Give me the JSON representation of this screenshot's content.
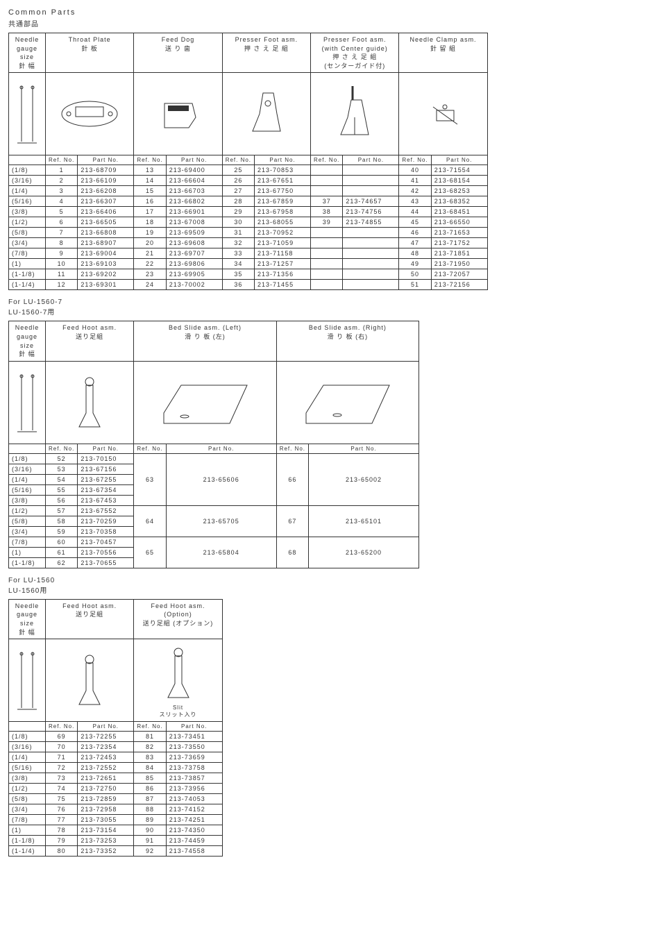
{
  "title": "Common Parts",
  "subtitle": "共通部品",
  "headers": {
    "gauge": "Needle gauge\nsize\n針 幅",
    "refno": "Ref. No.",
    "partno": "Part No.",
    "throat": "Throat Plate\n針 板",
    "feeddog": "Feed Dog\n送 り 歯",
    "presser": "Presser Foot asm.\n押 さ え 足 組",
    "presser_center": "Presser Foot asm.\n(with Center guide)\n押 さ え 足 組\n(センターガイド付)",
    "clamp": "Needle Clamp asm.\n針 留 組",
    "feedhoot": "Feed Hoot asm.\n送り足組",
    "feedhoot_opt": "Feed Hoot asm.\n(Option)\n送り足組 (オプション)",
    "bed_left": "Bed Slide asm. (Left)\n滑 り 板 (左)",
    "bed_right": "Bed Slide asm. (Right)\n滑 り 板 (右)",
    "slit": "Slit\nスリット入り"
  },
  "section2": {
    "title1": "For LU-1560-7",
    "title2": "LU-1560-7用"
  },
  "section3": {
    "title1": "For LU-1560",
    "title2": "LU-1560用"
  },
  "gauges": [
    "(1/8)",
    "(3/16)",
    "(1/4)",
    "(5/16)",
    "(3/8)",
    "(1/2)",
    "(5/8)",
    "(3/4)",
    "(7/8)",
    "(1)",
    "(1-1/8)",
    "(1-1/4)"
  ],
  "table1": [
    {
      "g": "(1/8)",
      "r1": "1",
      "p1": "213-68709",
      "r2": "13",
      "p2": "213-69400",
      "r3": "25",
      "p3": "213-70853",
      "r4": "",
      "p4": "",
      "r5": "40",
      "p5": "213-71554"
    },
    {
      "g": "(3/16)",
      "r1": "2",
      "p1": "213-66109",
      "r2": "14",
      "p2": "213-66604",
      "r3": "26",
      "p3": "213-67651",
      "r4": "",
      "p4": "",
      "r5": "41",
      "p5": "213-68154"
    },
    {
      "g": "(1/4)",
      "r1": "3",
      "p1": "213-66208",
      "r2": "15",
      "p2": "213-66703",
      "r3": "27",
      "p3": "213-67750",
      "r4": "",
      "p4": "",
      "r5": "42",
      "p5": "213-68253"
    },
    {
      "g": "(5/16)",
      "r1": "4",
      "p1": "213-66307",
      "r2": "16",
      "p2": "213-66802",
      "r3": "28",
      "p3": "213-67859",
      "r4": "37",
      "p4": "213-74657",
      "r5": "43",
      "p5": "213-68352"
    },
    {
      "g": "(3/8)",
      "r1": "5",
      "p1": "213-66406",
      "r2": "17",
      "p2": "213-66901",
      "r3": "29",
      "p3": "213-67958",
      "r4": "38",
      "p4": "213-74756",
      "r5": "44",
      "p5": "213-68451"
    },
    {
      "g": "(1/2)",
      "r1": "6",
      "p1": "213-66505",
      "r2": "18",
      "p2": "213-67008",
      "r3": "30",
      "p3": "213-68055",
      "r4": "39",
      "p4": "213-74855",
      "r5": "45",
      "p5": "213-66550"
    },
    {
      "g": "(5/8)",
      "r1": "7",
      "p1": "213-66808",
      "r2": "19",
      "p2": "213-69509",
      "r3": "31",
      "p3": "213-70952",
      "r4": "",
      "p4": "",
      "r5": "46",
      "p5": "213-71653"
    },
    {
      "g": "(3/4)",
      "r1": "8",
      "p1": "213-68907",
      "r2": "20",
      "p2": "213-69608",
      "r3": "32",
      "p3": "213-71059",
      "r4": "",
      "p4": "",
      "r5": "47",
      "p5": "213-71752"
    },
    {
      "g": "(7/8)",
      "r1": "9",
      "p1": "213-69004",
      "r2": "21",
      "p2": "213-69707",
      "r3": "33",
      "p3": "213-71158",
      "r4": "",
      "p4": "",
      "r5": "48",
      "p5": "213-71851"
    },
    {
      "g": "(1)",
      "r1": "10",
      "p1": "213-69103",
      "r2": "22",
      "p2": "213-69806",
      "r3": "34",
      "p3": "213-71257",
      "r4": "",
      "p4": "",
      "r5": "49",
      "p5": "213-71950"
    },
    {
      "g": "(1-1/8)",
      "r1": "11",
      "p1": "213-69202",
      "r2": "23",
      "p2": "213-69905",
      "r3": "35",
      "p3": "213-71356",
      "r4": "",
      "p4": "",
      "r5": "50",
      "p5": "213-72057"
    },
    {
      "g": "(1-1/4)",
      "r1": "12",
      "p1": "213-69301",
      "r2": "24",
      "p2": "213-70002",
      "r3": "36",
      "p3": "213-71455",
      "r4": "",
      "p4": "",
      "r5": "51",
      "p5": "213-72156"
    }
  ],
  "table2": [
    {
      "g": "(1/8)",
      "r1": "52",
      "p1": "213-70150"
    },
    {
      "g": "(3/16)",
      "r1": "53",
      "p1": "213-67156"
    },
    {
      "g": "(1/4)",
      "r1": "54",
      "p1": "213-67255"
    },
    {
      "g": "(5/16)",
      "r1": "55",
      "p1": "213-67354"
    },
    {
      "g": "(3/8)",
      "r1": "56",
      "p1": "213-67453"
    },
    {
      "g": "(1/2)",
      "r1": "57",
      "p1": "213-67552"
    },
    {
      "g": "(5/8)",
      "r1": "58",
      "p1": "213-70259"
    },
    {
      "g": "(3/4)",
      "r1": "59",
      "p1": "213-70358"
    },
    {
      "g": "(7/8)",
      "r1": "60",
      "p1": "213-70457"
    },
    {
      "g": "(1)",
      "r1": "61",
      "p1": "213-70556"
    },
    {
      "g": "(1-1/8)",
      "r1": "62",
      "p1": "213-70655"
    }
  ],
  "table2_merge": [
    {
      "r2": "63",
      "p2": "213-65606",
      "r3": "66",
      "p3": "213-65002",
      "span": 5
    },
    {
      "r2": "64",
      "p2": "213-65705",
      "r3": "67",
      "p3": "213-65101",
      "span": 3
    },
    {
      "r2": "65",
      "p2": "213-65804",
      "r3": "68",
      "p3": "213-65200",
      "span": 3
    }
  ],
  "table3": [
    {
      "g": "(1/8)",
      "r1": "69",
      "p1": "213-72255",
      "r2": "81",
      "p2": "213-73451"
    },
    {
      "g": "(3/16)",
      "r1": "70",
      "p1": "213-72354",
      "r2": "82",
      "p2": "213-73550"
    },
    {
      "g": "(1/4)",
      "r1": "71",
      "p1": "213-72453",
      "r2": "83",
      "p2": "213-73659"
    },
    {
      "g": "(5/16)",
      "r1": "72",
      "p1": "213-72552",
      "r2": "84",
      "p2": "213-73758"
    },
    {
      "g": "(3/8)",
      "r1": "73",
      "p1": "213-72651",
      "r2": "85",
      "p2": "213-73857"
    },
    {
      "g": "(1/2)",
      "r1": "74",
      "p1": "213-72750",
      "r2": "86",
      "p2": "213-73956"
    },
    {
      "g": "(5/8)",
      "r1": "75",
      "p1": "213-72859",
      "r2": "87",
      "p2": "213-74053"
    },
    {
      "g": "(3/4)",
      "r1": "76",
      "p1": "213-72958",
      "r2": "88",
      "p2": "213-74152"
    },
    {
      "g": "(7/8)",
      "r1": "77",
      "p1": "213-73055",
      "r2": "89",
      "p2": "213-74251"
    },
    {
      "g": "(1)",
      "r1": "78",
      "p1": "213-73154",
      "r2": "90",
      "p2": "213-74350"
    },
    {
      "g": "(1-1/8)",
      "r1": "79",
      "p1": "213-73253",
      "r2": "91",
      "p2": "213-74459"
    },
    {
      "g": "(1-1/4)",
      "r1": "80",
      "p1": "213-73352",
      "r2": "92",
      "p2": "213-74558"
    }
  ]
}
